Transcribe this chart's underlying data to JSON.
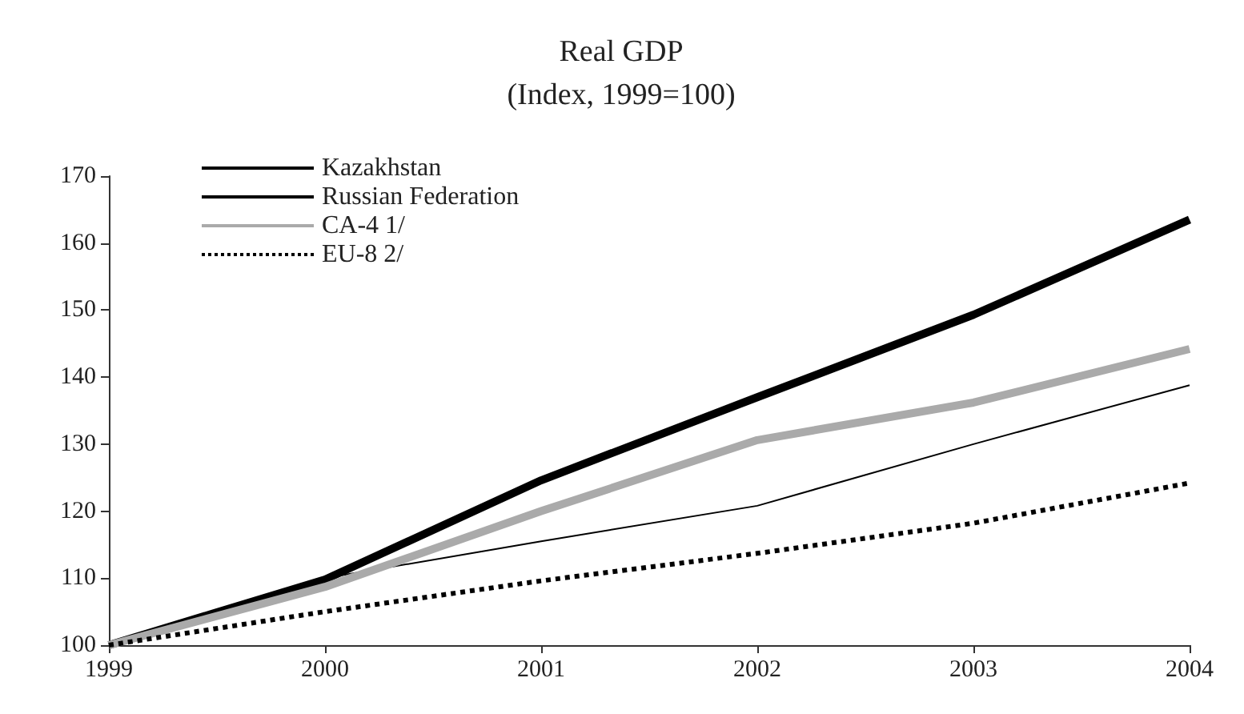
{
  "chart_data": {
    "type": "line",
    "title": "Real GDP",
    "subtitle": "(Index, 1999=100)",
    "categories": [
      "1999",
      "2000",
      "2001",
      "2002",
      "2003",
      "2004"
    ],
    "series": [
      {
        "name": "Kazakhstan",
        "color": "#000000",
        "values": [
          100,
          109.8,
          124.6,
          137,
          149.3,
          163.5
        ],
        "line_style": "solid"
      },
      {
        "name": "Russian Federation",
        "color": "#000000",
        "values": [
          100,
          110,
          115.5,
          120.8,
          130,
          138.8
        ],
        "line_style": "solid"
      },
      {
        "name": "CA-4 1/",
        "color": "#aaaaaa",
        "values": [
          100,
          108.7,
          120,
          130.6,
          136.2,
          144.2
        ],
        "line_style": "solid"
      },
      {
        "name": "EU-8 2/",
        "color": "#000000",
        "values": [
          100,
          105,
          109.6,
          113.7,
          118.2,
          124.2
        ],
        "line_style": "dotted"
      }
    ],
    "ylim": [
      100,
      170
    ],
    "yticks": [
      100,
      110,
      120,
      130,
      140,
      150,
      160,
      170
    ],
    "grid": false,
    "legend": "top left",
    "marker": "none"
  }
}
